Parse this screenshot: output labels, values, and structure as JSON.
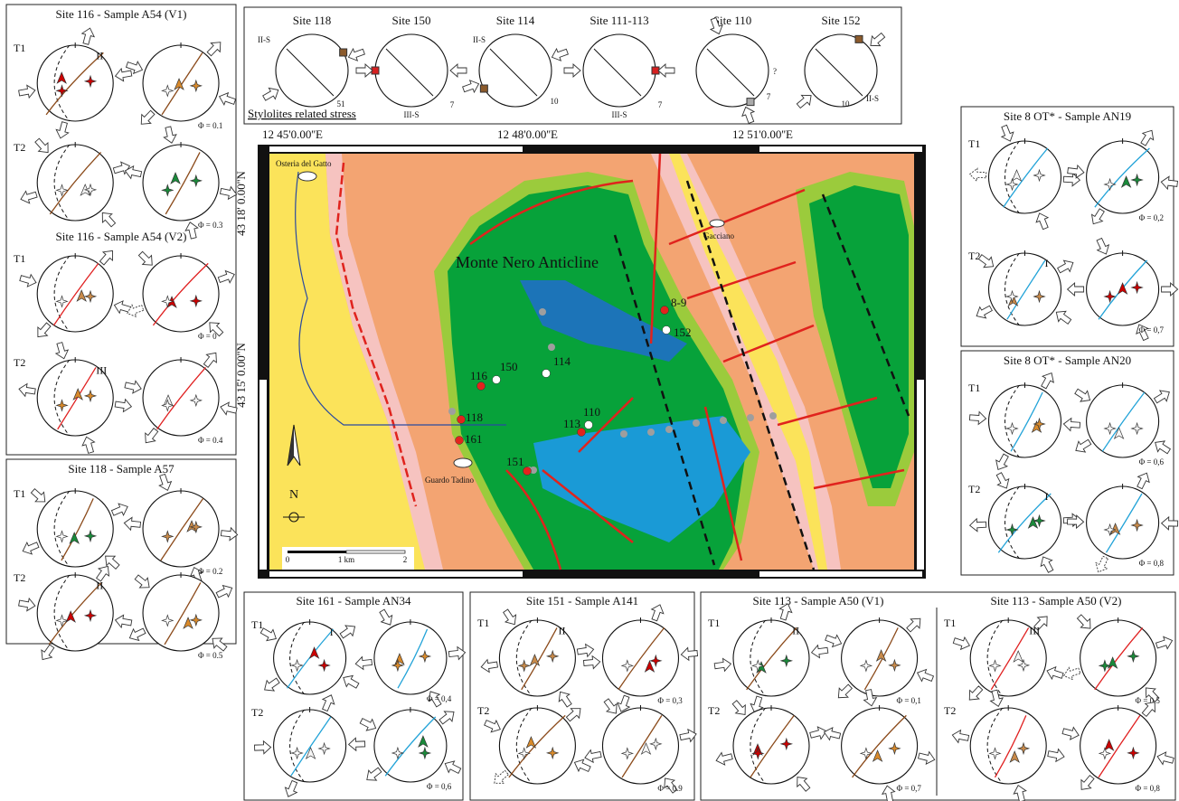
{
  "stress_panels": [
    {
      "title": "Site 116 - Sample A54 (V1)",
      "rows": [
        {
          "label": "T1",
          "phi": "Φ = 0.1",
          "note": "II"
        },
        {
          "label": "T2",
          "phi": "Φ = 0.3"
        }
      ]
    },
    {
      "title": "Site 116 - Sample A54 (V2)",
      "rows": [
        {
          "label": "T1",
          "phi": "Φ = 0"
        },
        {
          "label": "T2",
          "phi": "Φ = 0.4",
          "note": "III"
        }
      ]
    },
    {
      "title": "Site 118 - Sample A57",
      "rows": [
        {
          "label": "T1",
          "phi": "Φ = 0.2"
        },
        {
          "label": "T2",
          "phi": "Φ = 0.5",
          "note": "II"
        }
      ]
    },
    {
      "title": "Site 8 OT* - Sample AN19",
      "rows": [
        {
          "label": "T1",
          "phi": "Φ = 0,2"
        },
        {
          "label": "T2",
          "phi": "Φ = 0,7",
          "note": "I"
        }
      ]
    },
    {
      "title": "Site 8 OT* - Sample AN20",
      "rows": [
        {
          "label": "T1",
          "phi": "Φ = 0,6"
        },
        {
          "label": "T2",
          "phi": "Φ = 0,8",
          "note": "I"
        }
      ]
    },
    {
      "title": "Site 161 - Sample AN34",
      "rows": [
        {
          "label": "T1",
          "phi": "Φ = 0,4",
          "note": "I"
        },
        {
          "label": "T2",
          "phi": "Φ = 0,6"
        }
      ]
    },
    {
      "title": "Site 151 - Sample A141",
      "rows": [
        {
          "label": "T1",
          "phi": "Φ = 0,3",
          "note": "II"
        },
        {
          "label": "T2",
          "phi": "Φ = 0.9"
        }
      ]
    },
    {
      "title": "Site 113 - Sample A50 (V1)",
      "rows": [
        {
          "label": "T1",
          "phi": "Φ = 0,1",
          "note": "II"
        },
        {
          "label": "T2",
          "phi": "Φ = 0,7"
        }
      ]
    },
    {
      "title": "Site 113 - Sample A50 (V2)",
      "rows": [
        {
          "label": "T1",
          "phi": "Φ = 0,5",
          "note": "III"
        },
        {
          "label": "T2",
          "phi": "Φ = 0,8"
        }
      ]
    }
  ],
  "stylolites": {
    "caption": "Stylolites related stress",
    "sites": [
      {
        "name": "Site 118",
        "notes": [
          "II-S",
          "51"
        ]
      },
      {
        "name": "Site 150",
        "notes": [
          "III-S",
          "7"
        ]
      },
      {
        "name": "Site 114",
        "notes": [
          "II-S",
          "10"
        ]
      },
      {
        "name": "Site 111-113",
        "notes": [
          "7",
          "III-S"
        ]
      },
      {
        "name": "Site 110",
        "notes": [
          "?",
          "7"
        ]
      },
      {
        "name": "Site 152",
        "notes": [
          "II-S",
          "10"
        ]
      }
    ]
  },
  "map": {
    "lon_labels": [
      "12 45'0.00''E",
      "12 48'0.00''E",
      "12 51'0.00''E"
    ],
    "lat_labels": [
      "43 18' 0.00''N",
      "43 15' 0.00''N"
    ],
    "places": [
      "Osteria del Gatto",
      "Gacciano",
      "Guardo Tadino"
    ],
    "structure": "Monte Nero Anticline",
    "sites": [
      "8-9",
      "152",
      "116",
      "150",
      "114",
      "118",
      "110",
      "113",
      "161",
      "151"
    ],
    "north": "N",
    "scale": [
      "0",
      "1 km",
      "2"
    ]
  }
}
